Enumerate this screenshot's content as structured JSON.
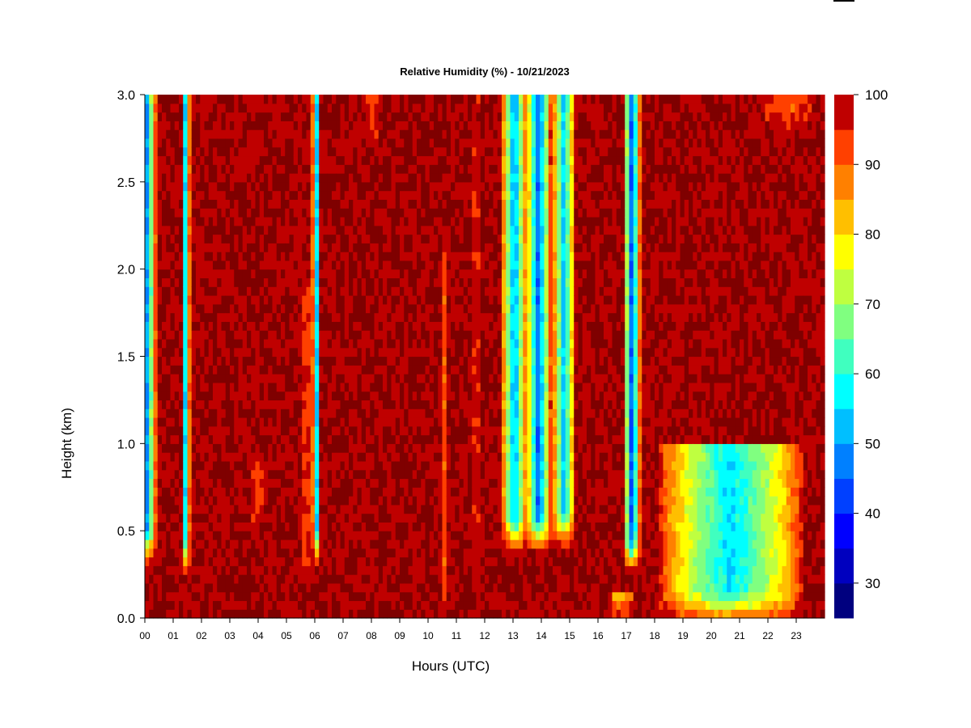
{
  "chart_data": {
    "type": "heatmap",
    "title": "Relative Humidity (%) - 10/21/2023",
    "xlabel": "Hours (UTC)",
    "ylabel": "Height (km)",
    "x_ticks": [
      "00",
      "01",
      "02",
      "03",
      "04",
      "05",
      "06",
      "07",
      "08",
      "09",
      "10",
      "11",
      "12",
      "13",
      "14",
      "15",
      "16",
      "17",
      "18",
      "19",
      "20",
      "21",
      "22",
      "23"
    ],
    "xlim": [
      0,
      24
    ],
    "y_ticks": [
      "0.0",
      "0.5",
      "1.0",
      "1.5",
      "2.0",
      "2.5",
      "3.0"
    ],
    "ylim": [
      0,
      3
    ],
    "colorbar": {
      "levels": [
        25,
        30,
        35,
        40,
        45,
        50,
        55,
        60,
        65,
        70,
        75,
        80,
        85,
        90,
        95,
        100
      ],
      "tick_values": [
        30,
        40,
        50,
        60,
        70,
        80,
        90,
        100
      ],
      "tick_labels": [
        "30",
        "40",
        "50",
        "60",
        "70",
        "80",
        "90",
        "100"
      ],
      "colors": [
        "#00007f",
        "#0000bf",
        "#0000ff",
        "#0040ff",
        "#0080ff",
        "#00bfff",
        "#00ffff",
        "#40ffbf",
        "#80ff80",
        "#bfff40",
        "#ffff00",
        "#ffbf00",
        "#ff8000",
        "#ff4000",
        "#bf0000",
        "#7f0000"
      ]
    },
    "background_rh": 100,
    "features": [
      {
        "hour": 0.05,
        "half_width_h": 0.35,
        "z_bottom_km": 0.35,
        "z_top_km": 3.0,
        "min_rh": 47
      },
      {
        "hour": 1.45,
        "half_width_h": 0.14,
        "z_bottom_km": 0.3,
        "z_top_km": 3.0,
        "min_rh": 50
      },
      {
        "hour": 6.05,
        "half_width_h": 0.14,
        "z_bottom_km": 0.35,
        "z_top_km": 3.0,
        "min_rh": 48
      },
      {
        "hour": 11.7,
        "half_width_h": 0.08,
        "z_bottom_km": 0.0,
        "z_top_km": 3.0,
        "min_rh": 80
      },
      {
        "hour": 10.6,
        "half_width_h": 0.1,
        "z_bottom_km": 0.0,
        "z_top_km": 2.1,
        "min_rh": 90
      },
      {
        "hour": 13.05,
        "half_width_h": 0.45,
        "z_bottom_km": 0.42,
        "z_top_km": 3.0,
        "min_rh": 50
      },
      {
        "hour": 13.9,
        "half_width_h": 0.45,
        "z_bottom_km": 0.42,
        "z_top_km": 3.0,
        "min_rh": 45
      },
      {
        "hour": 14.8,
        "half_width_h": 0.4,
        "z_bottom_km": 0.45,
        "z_top_km": 3.0,
        "min_rh": 52
      },
      {
        "hour": 17.2,
        "half_width_h": 0.3,
        "z_bottom_km": 0.3,
        "z_top_km": 3.0,
        "min_rh": 42
      },
      {
        "hour": 20.7,
        "half_width_h": 2.6,
        "z_bottom_km": 0.0,
        "z_top_km": 1.0,
        "min_rh": 55
      },
      {
        "hour": 16.8,
        "half_width_h": 0.5,
        "z_bottom_km": 0.0,
        "z_top_km": 0.15,
        "min_rh": 78
      },
      {
        "hour": 8.0,
        "half_width_h": 0.3,
        "z_bottom_km": 2.7,
        "z_top_km": 3.0,
        "min_rh": 92
      },
      {
        "hour": 22.7,
        "half_width_h": 1.0,
        "z_bottom_km": 2.8,
        "z_top_km": 3.0,
        "min_rh": 90
      },
      {
        "hour": 4.0,
        "half_width_h": 0.3,
        "z_bottom_km": 0.5,
        "z_top_km": 0.9,
        "min_rh": 92
      },
      {
        "hour": 5.7,
        "half_width_h": 0.2,
        "z_bottom_km": 0.2,
        "z_top_km": 1.9,
        "min_rh": 92
      }
    ]
  }
}
